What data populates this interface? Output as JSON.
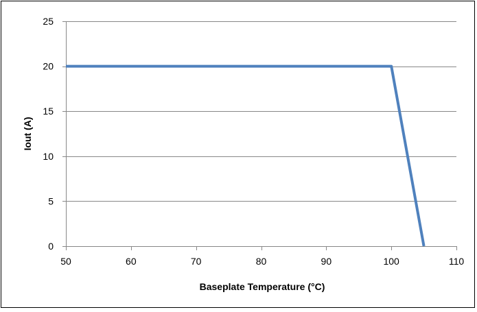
{
  "chart_data": {
    "type": "line",
    "title": "",
    "xlabel": "Baseplate Temperature (°C)",
    "ylabel": "Iout (A)",
    "xlim": [
      50,
      110
    ],
    "ylim": [
      0,
      25
    ],
    "x_ticks": [
      50,
      60,
      70,
      80,
      90,
      100,
      110
    ],
    "y_ticks": [
      0,
      5,
      10,
      15,
      20,
      25
    ],
    "grid": "horizontal",
    "legend": "none",
    "series": [
      {
        "x": [
          50,
          100,
          105
        ],
        "y": [
          20,
          20,
          0
        ],
        "color": "#4F81BD"
      }
    ],
    "colors": {
      "line": "#4F81BD",
      "grid": "#878787",
      "axis": "#878787"
    }
  }
}
